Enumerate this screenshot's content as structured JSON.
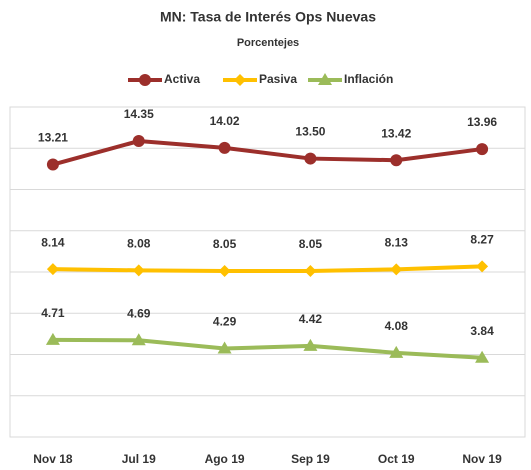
{
  "chart_data": {
    "type": "line",
    "title": "MN: Tasa de Interés Ops Nuevas",
    "subtitle": "Porcentejes",
    "categories": [
      "Nov 18",
      "Jul 19",
      "Ago 19",
      "Sep 19",
      "Oct 19",
      "Nov 19"
    ],
    "series": [
      {
        "name": "Activa",
        "color": "#9c2f2b",
        "marker": "circle",
        "values": [
          13.21,
          14.35,
          14.02,
          13.5,
          13.42,
          13.96
        ],
        "value_labels": [
          "13.21",
          "14.35",
          "14.02",
          "13.50",
          "13.42",
          "13.96"
        ]
      },
      {
        "name": "Pasiva",
        "color": "#ffc000",
        "marker": "diamond",
        "values": [
          8.14,
          8.08,
          8.05,
          8.05,
          8.13,
          8.27
        ],
        "value_labels": [
          "8.14",
          "8.08",
          "8.05",
          "8.05",
          "8.13",
          "8.27"
        ]
      },
      {
        "name": "Inflación",
        "color": "#9bbb59",
        "marker": "triangle",
        "values": [
          4.71,
          4.69,
          4.29,
          4.42,
          4.08,
          3.84
        ],
        "value_labels": [
          "4.71",
          "4.69",
          "4.29",
          "4.42",
          "4.08",
          "3.84"
        ]
      }
    ],
    "ylim": [
      0,
      16
    ],
    "yticks": [
      0,
      2,
      4,
      6,
      8,
      10,
      12,
      14,
      16
    ],
    "grid": true,
    "legend": "top"
  }
}
